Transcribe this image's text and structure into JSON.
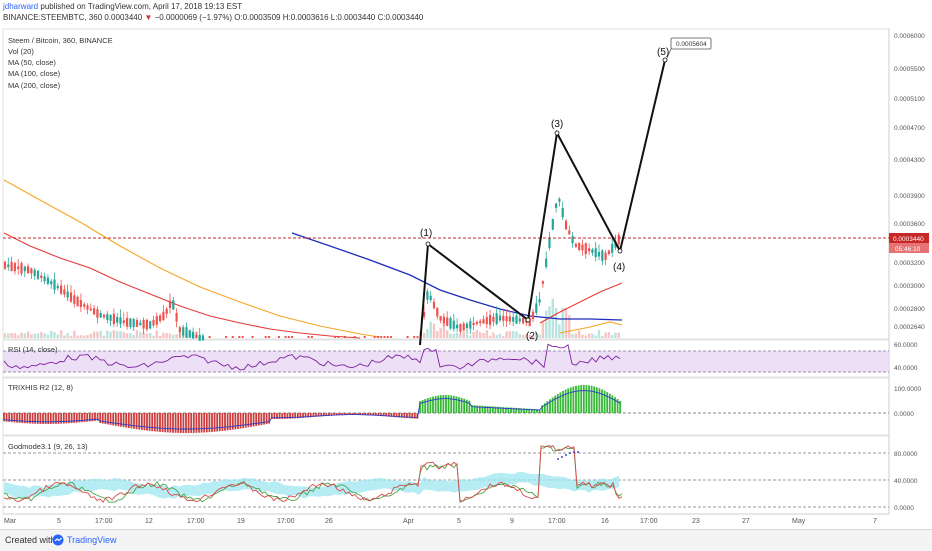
{
  "header": {
    "author": "jdharward",
    "published_text": " published on TradingView.com, April 17, 2018 19:13 EST",
    "symbol_line": "BINANCE:STEEMBTC, 360",
    "last_price": "0.0003440",
    "change_arrow": "▼",
    "change": "−0.0000069 (−1.97%)",
    "ohlc": "O:0.0003509 H:0.0003616 L:0.0003440 C:0.0003440"
  },
  "legend": {
    "title": "Steem / Bitcoin, 360, BINANCE",
    "items": [
      "Vol (20)",
      "MA (50, close)",
      "MA (100, close)",
      "MA (200, close)"
    ]
  },
  "price_axis": {
    "ticks": [
      "0.0006000",
      "0.0005500",
      "0.0005100",
      "0.0004700",
      "0.0004300",
      "0.0003900",
      "0.0003600",
      "0.0003200",
      "0.0003000",
      "0.0002800",
      "0.0002640"
    ],
    "tick_values": [
      0.0006,
      0.00055,
      0.00051,
      0.00047,
      0.00043,
      0.00039,
      0.00036,
      0.00032,
      0.0003,
      0.00028,
      0.000264
    ],
    "current_price_label": "0.0003440",
    "countdown_label": "05:46:10"
  },
  "elliott_labels": [
    "(1)",
    "(2)",
    "(3)",
    "(4)",
    "(5)"
  ],
  "target_label": "0.0005604",
  "rsi": {
    "title": "RSI (14, close)",
    "ticks": [
      "60.0000",
      "40.0000"
    ]
  },
  "trix": {
    "title": "TRIXHIS R2 (12, 8)",
    "ticks": [
      "100.0000",
      "0.0000"
    ]
  },
  "godmode": {
    "title": "Godmode3.1 (9, 26, 13)",
    "ticks": [
      "80.0000",
      "40.0000",
      "0.0000"
    ]
  },
  "time_axis": [
    "Mar",
    "5",
    "17:00",
    "12",
    "17:00",
    "19",
    "17:00",
    "26",
    "Apr",
    "5",
    "9",
    "17:00",
    "16",
    "17:00",
    "23",
    "27",
    "May",
    "7"
  ],
  "footer": {
    "created_with": "Created with",
    "brand": "TradingView"
  },
  "colors": {
    "up": "#26a69a",
    "down": "#ef5350",
    "ma50": "#e53935",
    "ma100": "#f5a623",
    "ma200": "#1e2dbd",
    "price_line": "#c62828",
    "rsi_band": "#e9d8f4",
    "rsi_line": "#7e1fa0",
    "trix_up": "#21b021",
    "trix_down": "#c62828",
    "godmode_cyan": "#9de7f0",
    "accent": "#2962ff"
  }
}
